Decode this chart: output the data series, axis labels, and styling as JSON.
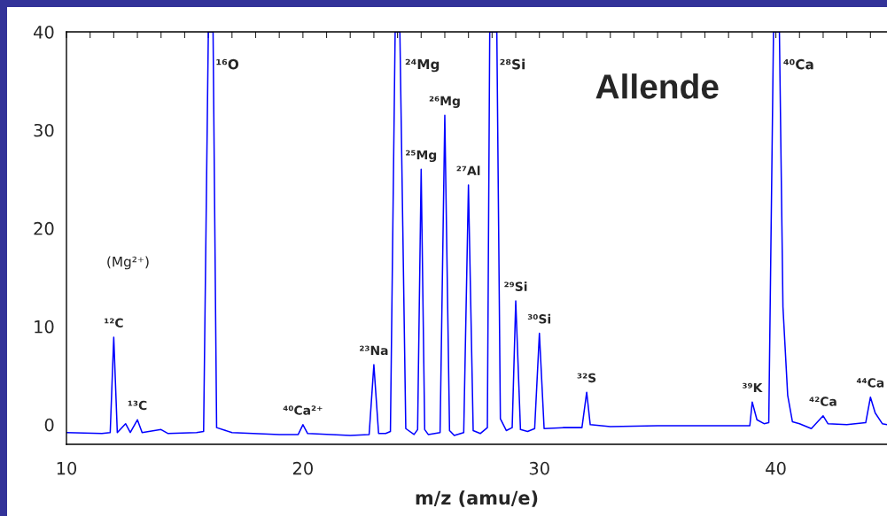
{
  "chart_data": {
    "type": "line",
    "xlabel": "m/z (amu/e)",
    "xlim": [
      10,
      44.7
    ],
    "ylim": [
      -2,
      40
    ],
    "xticks": [
      10,
      {
        "value": 11,
        "label": null
      },
      {
        "value": 12,
        "label": null
      },
      {
        "value": 13,
        "label": null
      },
      {
        "value": 14,
        "label": null
      },
      {
        "value": 15,
        "label": null
      },
      {
        "value": 16,
        "label": null
      },
      {
        "value": 17,
        "label": null
      },
      {
        "value": 18,
        "label": null
      },
      {
        "value": 19,
        "label": null
      },
      20,
      {
        "value": 21,
        "label": null
      },
      {
        "value": 22,
        "label": null
      },
      {
        "value": 23,
        "label": null
      },
      {
        "value": 24,
        "label": null
      },
      {
        "value": 25,
        "label": null
      },
      {
        "value": 26,
        "label": null
      },
      {
        "value": 27,
        "label": null
      },
      {
        "value": 28,
        "label": null
      },
      {
        "value": 29,
        "label": null
      },
      30,
      {
        "value": 31,
        "label": null
      },
      {
        "value": 32,
        "label": null
      },
      {
        "value": 33,
        "label": null
      },
      {
        "value": 34,
        "label": null
      },
      {
        "value": 35,
        "label": null
      },
      {
        "value": 36,
        "label": null
      },
      {
        "value": 37,
        "label": null
      },
      {
        "value": 38,
        "label": null
      },
      {
        "value": 39,
        "label": null
      },
      40,
      {
        "value": 41,
        "label": null
      },
      {
        "value": 42,
        "label": null
      },
      {
        "value": 43,
        "label": null
      },
      {
        "value": 44,
        "label": null
      }
    ],
    "yticks": [
      0,
      10,
      20,
      30,
      40
    ],
    "grid": false,
    "legend": false,
    "marker": "none",
    "line_style": "solid",
    "series": [
      {
        "color": "#0000ff",
        "x": [
          10,
          11.5,
          11.85,
          12,
          12.15,
          12.5,
          12.7,
          13,
          13.2,
          14,
          14.3,
          15.5,
          15.8,
          16,
          16.2,
          16.35,
          17,
          19,
          19.8,
          20,
          20.2,
          22,
          22.8,
          23,
          23.2,
          23.5,
          23.7,
          23.9,
          24.1,
          24.35,
          24.7,
          24.85,
          25,
          25.15,
          25.3,
          25.8,
          26,
          26.2,
          26.4,
          26.8,
          27,
          27.2,
          27.5,
          27.8,
          27.9,
          28.2,
          28.35,
          28.6,
          28.85,
          29,
          29.2,
          29.5,
          29.8,
          30,
          30.2,
          31,
          31.8,
          32,
          32.15,
          33,
          35,
          38,
          38.9,
          39,
          39.2,
          39.5,
          39.7,
          39.9,
          40.15,
          40.3,
          40.5,
          40.7,
          41,
          41.5,
          42,
          42.2,
          43,
          43.8,
          44,
          44.2,
          44.5,
          44.7
        ],
        "values": [
          -0.8,
          -0.9,
          -0.8,
          8.9,
          -0.8,
          0.1,
          -0.8,
          0.5,
          -0.8,
          -0.5,
          -0.9,
          -0.8,
          -0.7,
          40,
          40,
          -0.3,
          -0.8,
          -1.0,
          -1.0,
          0,
          -0.9,
          -1.1,
          -1.0,
          6.1,
          -0.9,
          -0.9,
          -0.7,
          40,
          40,
          -0.4,
          -1.0,
          -0.5,
          26.0,
          -0.5,
          -1.0,
          -0.8,
          31.5,
          -0.6,
          -1.1,
          -0.8,
          24.4,
          -0.6,
          -0.9,
          -0.3,
          40,
          40,
          0.6,
          -0.6,
          -0.3,
          12.6,
          -0.5,
          -0.7,
          -0.4,
          9.3,
          -0.4,
          -0.3,
          -0.3,
          3.3,
          0,
          -0.2,
          -0.1,
          -0.1,
          -0.1,
          2.3,
          0.5,
          0.1,
          0.2,
          40,
          40,
          12.0,
          3,
          0.3,
          0.1,
          -0.4,
          0.9,
          0.1,
          0,
          0.2,
          2.8,
          1.2,
          0.1,
          0.0
        ]
      }
    ],
    "annotations": [
      {
        "text": "¹²C",
        "x": 12,
        "y": 8.9
      },
      "(Mg²⁺)",
      {
        "text": "¹³C",
        "x": 13,
        "y": 0.5
      },
      {
        "text": "¹⁶O",
        "x": 16,
        "y": 40
      },
      {
        "text": "⁴⁰Ca²⁺",
        "x": 20,
        "y": 0
      },
      {
        "text": "²³Na",
        "x": 23,
        "y": 6.1
      },
      {
        "text": "²⁴Mg",
        "x": 24,
        "y": 40
      },
      {
        "text": "²⁵Mg",
        "x": 25,
        "y": 26.0
      },
      {
        "text": "²⁶Mg",
        "x": 26,
        "y": 31.5
      },
      {
        "text": "²⁷Al",
        "x": 27,
        "y": 24.4
      },
      {
        "text": "²⁸Si",
        "x": 28,
        "y": 40
      },
      {
        "text": "²⁹Si",
        "x": 29,
        "y": 12.6
      },
      {
        "text": "³⁰Si",
        "x": 30,
        "y": 9.3
      },
      {
        "text": "³²S",
        "x": 32,
        "y": 3.3
      },
      {
        "text": "³⁹K",
        "x": 39,
        "y": 2.3
      },
      {
        "text": "⁴⁰Ca",
        "x": 40,
        "y": 40
      },
      {
        "text": "⁴²Ca",
        "x": 42,
        "y": 0.9
      },
      {
        "text": "⁴⁴Ca",
        "x": 44,
        "y": 2.8
      },
      "Allende"
    ]
  }
}
